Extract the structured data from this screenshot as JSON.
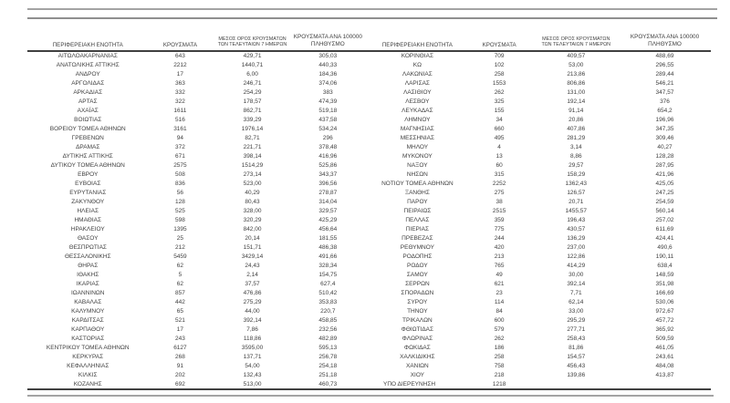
{
  "page": {
    "background": "#ffffff",
    "text_color": "#3f3f3f",
    "rule_gray": "#a3a3a3",
    "rule_dark": "#404040"
  },
  "table": {
    "headers": {
      "region": "ΠΕΡΙΦΕΡΕΙΑΚΗ ΕΝΟΤΗΤΑ",
      "cases": "ΚΡΟΥΣΜΑΤΑ",
      "avg7_line1": "ΜΕΣΟΣ ΟΡΟΣ ΚΡΟΥΣΜΑΤΩΝ",
      "avg7_line2": "ΤΩΝ ΤΕΛΕΥΤΑΙΩΝ 7 ΗΜΕΡΩΝ",
      "per100k_line1": "ΚΡΟΥΣΜΑΤΑ ΑΝΑ 100000",
      "per100k_line2": "ΠΛΗΘΥΣΜΟ"
    },
    "left_rows": [
      [
        "ΑΙΤΩΛΟΑΚΑΡΝΑΝΙΑΣ",
        "643",
        "429,71",
        "305,03"
      ],
      [
        "ΑΝΑΤΟΛΙΚΗΣ ΑΤΤΙΚΗΣ",
        "2212",
        "1440,71",
        "440,33"
      ],
      [
        "ΑΝΔΡΟΥ",
        "17",
        "6,00",
        "184,36"
      ],
      [
        "ΑΡΓΟΛΙΔΑΣ",
        "363",
        "246,71",
        "374,06"
      ],
      [
        "ΑΡΚΑΔΙΑΣ",
        "332",
        "254,29",
        "383"
      ],
      [
        "ΑΡΤΑΣ",
        "322",
        "178,57",
        "474,39"
      ],
      [
        "ΑΧΑΪΑΣ",
        "1611",
        "862,71",
        "519,18"
      ],
      [
        "ΒΟΙΩΤΙΑΣ",
        "516",
        "339,29",
        "437,58"
      ],
      [
        "ΒΟΡΕΙΟΥ ΤΟΜΕΑ ΑΘΗΝΩΝ",
        "3161",
        "1976,14",
        "534,24"
      ],
      [
        "ΓΡΕΒΕΝΩΝ",
        "94",
        "82,71",
        "296"
      ],
      [
        "ΔΡΑΜΑΣ",
        "372",
        "221,71",
        "378,48"
      ],
      [
        "ΔΥΤΙΚΗΣ ΑΤΤΙΚΗΣ",
        "671",
        "398,14",
        "416,96"
      ],
      [
        "ΔΥΤΙΚΟΥ ΤΟΜΕΑ ΑΘΗΝΩΝ",
        "2575",
        "1514,29",
        "525,86"
      ],
      [
        "ΕΒΡΟΥ",
        "508",
        "273,14",
        "343,37"
      ],
      [
        "ΕΥΒΟΙΑΣ",
        "836",
        "523,00",
        "396,56"
      ],
      [
        "ΕΥΡΥΤΑΝΙΑΣ",
        "56",
        "40,29",
        "278,87"
      ],
      [
        "ΖΑΚΥΝΘΟΥ",
        "128",
        "80,43",
        "314,04"
      ],
      [
        "ΗΛΕΙΑΣ",
        "525",
        "328,00",
        "329,57"
      ],
      [
        "ΗΜΑΘΙΑΣ",
        "598",
        "320,29",
        "425,29"
      ],
      [
        "ΗΡΑΚΛΕΙΟΥ",
        "1395",
        "842,00",
        "456,64"
      ],
      [
        "ΘΑΣΟΥ",
        "25",
        "20,14",
        "181,55"
      ],
      [
        "ΘΕΣΠΡΩΤΙΑΣ",
        "212",
        "151,71",
        "486,38"
      ],
      [
        "ΘΕΣΣΑΛΟΝΙΚΗΣ",
        "5459",
        "3429,14",
        "491,66"
      ],
      [
        "ΘΗΡΑΣ",
        "62",
        "24,43",
        "328,34"
      ],
      [
        "ΙΘΑΚΗΣ",
        "5",
        "2,14",
        "154,75"
      ],
      [
        "ΙΚΑΡΙΑΣ",
        "62",
        "37,57",
        "627,4"
      ],
      [
        "ΙΩΑΝΝΙΝΩΝ",
        "857",
        "476,86",
        "510,42"
      ],
      [
        "ΚΑΒΑΛΑΣ",
        "442",
        "275,29",
        "353,83"
      ],
      [
        "ΚΑΛΥΜΝΟΥ",
        "65",
        "44,00",
        "220,7"
      ],
      [
        "ΚΑΡΔΙΤΣΑΣ",
        "521",
        "392,14",
        "458,85"
      ],
      [
        "ΚΑΡΠΑΘΟΥ",
        "17",
        "7,86",
        "232,56"
      ],
      [
        "ΚΑΣΤΟΡΙΑΣ",
        "243",
        "118,86",
        "482,89"
      ],
      [
        "ΚΕΝΤΡΙΚΟΥ ΤΟΜΕΑ ΑΘΗΝΩΝ",
        "6127",
        "3595,00",
        "595,13"
      ],
      [
        "ΚΕΡΚΥΡΑΣ",
        "268",
        "137,71",
        "256,78"
      ],
      [
        "ΚΕΦΑΛΛΗΝΙΑΣ",
        "91",
        "54,00",
        "254,18"
      ],
      [
        "ΚΙΛΚΙΣ",
        "202",
        "132,43",
        "251,18"
      ],
      [
        "ΚΟΖΑΝΗΣ",
        "692",
        "513,00",
        "460,73"
      ]
    ],
    "right_rows": [
      [
        "ΚΟΡΙΝΘΙΑΣ",
        "709",
        "409,57",
        "488,69"
      ],
      [
        "ΚΩ",
        "102",
        "53,00",
        "296,55"
      ],
      [
        "ΛΑΚΩΝΙΑΣ",
        "258",
        "213,86",
        "289,44"
      ],
      [
        "ΛΑΡΙΣΑΣ",
        "1553",
        "806,86",
        "546,21"
      ],
      [
        "ΛΑΣΙΘΙΟΥ",
        "262",
        "131,00",
        "347,57"
      ],
      [
        "ΛΕΣΒΟΥ",
        "325",
        "192,14",
        "376"
      ],
      [
        "ΛΕΥΚΑΔΑΣ",
        "155",
        "91,14",
        "654,2"
      ],
      [
        "ΛΗΜΝΟΥ",
        "34",
        "20,86",
        "196,96"
      ],
      [
        "ΜΑΓΝΗΣΙΑΣ",
        "660",
        "407,86",
        "347,35"
      ],
      [
        "ΜΕΣΣΗΝΙΑΣ",
        "495",
        "281,29",
        "309,46"
      ],
      [
        "ΜΗΛΟΥ",
        "4",
        "3,14",
        "40,27"
      ],
      [
        "ΜΥΚΟΝΟΥ",
        "13",
        "8,86",
        "128,28"
      ],
      [
        "ΝΑΞΟΥ",
        "60",
        "29,57",
        "287,95"
      ],
      [
        "ΝΗΣΩΝ",
        "315",
        "158,29",
        "421,96"
      ],
      [
        "ΝΟΤΙΟΥ ΤΟΜΕΑ ΑΘΗΝΩΝ",
        "2252",
        "1362,43",
        "425,05"
      ],
      [
        "ΞΑΝΘΗΣ",
        "275",
        "126,57",
        "247,25"
      ],
      [
        "ΠΑΡΟΥ",
        "38",
        "20,71",
        "254,59"
      ],
      [
        "ΠΕΙΡΑΙΩΣ",
        "2515",
        "1455,57",
        "560,14"
      ],
      [
        "ΠΕΛΛΑΣ",
        "359",
        "196,43",
        "257,02"
      ],
      [
        "ΠΙΕΡΙΑΣ",
        "775",
        "430,57",
        "611,69"
      ],
      [
        "ΠΡΕΒΕΖΑΣ",
        "244",
        "136,29",
        "424,41"
      ],
      [
        "ΡΕΘΥΜΝΟΥ",
        "420",
        "237,00",
        "490,6"
      ],
      [
        "ΡΟΔΟΠΗΣ",
        "213",
        "122,86",
        "190,11"
      ],
      [
        "ΡΟΔΟΥ",
        "765",
        "414,29",
        "638,4"
      ],
      [
        "ΣΑΜΟΥ",
        "49",
        "30,00",
        "148,59"
      ],
      [
        "ΣΕΡΡΩΝ",
        "621",
        "392,14",
        "351,98"
      ],
      [
        "ΣΠΟΡΑΔΩΝ",
        "23",
        "7,71",
        "166,69"
      ],
      [
        "ΣΥΡΟΥ",
        "114",
        "62,14",
        "530,06"
      ],
      [
        "ΤΗΝΟΥ",
        "84",
        "33,00",
        "972,67"
      ],
      [
        "ΤΡΙΚΑΛΩΝ",
        "600",
        "295,29",
        "457,72"
      ],
      [
        "ΦΘΙΩΤΙΔΑΣ",
        "579",
        "277,71",
        "365,92"
      ],
      [
        "ΦΛΩΡΙΝΑΣ",
        "262",
        "258,43",
        "509,59"
      ],
      [
        "ΦΩΚΙΔΑΣ",
        "186",
        "81,86",
        "461,05"
      ],
      [
        "ΧΑΛΚΙΔΙΚΗΣ",
        "258",
        "154,57",
        "243,61"
      ],
      [
        "ΧΑΝΙΩΝ",
        "758",
        "456,43",
        "484,08"
      ],
      [
        "ΧΙΟΥ",
        "218",
        "139,86",
        "413,87"
      ],
      [
        "ΥΠΟ ΔΙΕΡΕΥΝΗΣΗ",
        "1218",
        "",
        ""
      ]
    ],
    "right_footer_left_aligned": true
  }
}
